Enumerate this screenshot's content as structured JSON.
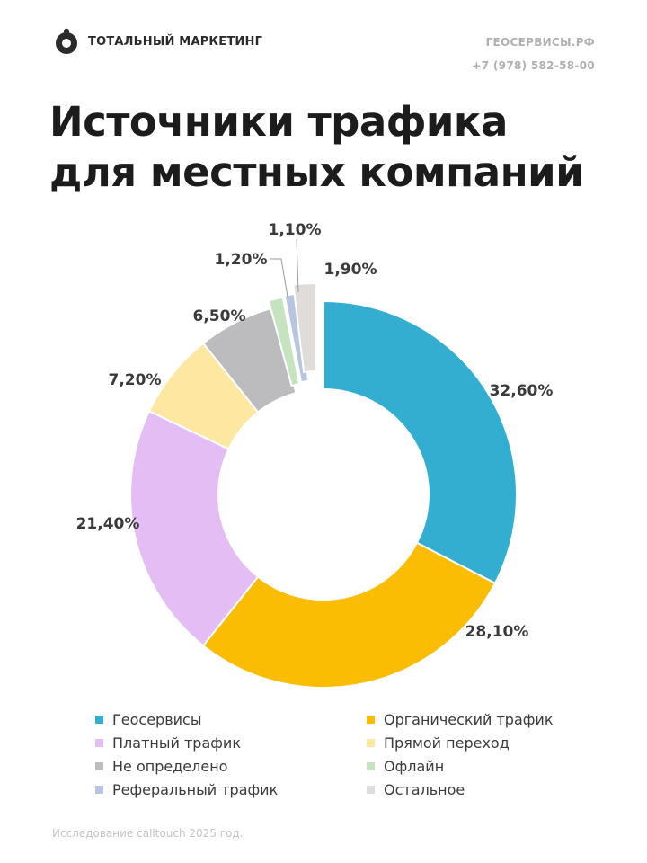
{
  "header": {
    "brand_name": "ТОТАЛЬНЫЙ МАРКЕТИНГ",
    "site": "ГЕОСЕРВИСЫ.РФ",
    "phone": "+7 (978) 582-58-00"
  },
  "title": {
    "line1": "Источники трафика",
    "line2": "для местных компаний"
  },
  "chart_data": {
    "type": "pie",
    "title": "Источники трафика для местных компаний",
    "donut": true,
    "legend_position": "bottom",
    "slices": [
      {
        "name": "Геосервисы",
        "value": 32.6,
        "label": "32,60%",
        "color": "#33aed0"
      },
      {
        "name": "Органический трафик",
        "value": 28.1,
        "label": "28,10%",
        "color": "#fbbd03"
      },
      {
        "name": "Платный трафик",
        "value": 21.4,
        "label": "21,40%",
        "color": "#e4bdf4"
      },
      {
        "name": "Прямой переход",
        "value": 7.2,
        "label": "7,20%",
        "color": "#fde7a1"
      },
      {
        "name": "Не определено",
        "value": 6.5,
        "label": "6,50%",
        "color": "#bcbbbe"
      },
      {
        "name": "Офлайн",
        "value": 1.2,
        "label": "1,20%",
        "color": "#c6e3c0"
      },
      {
        "name": "Реферальный трафик",
        "value": 1.1,
        "label": "1,10%",
        "color": "#b7c5e0"
      },
      {
        "name": "Остальное",
        "value": 1.9,
        "label": "1,90%",
        "color": "#e0dcda"
      }
    ]
  },
  "legend": [
    {
      "label": "Геосервисы",
      "color": "#33aed0"
    },
    {
      "label": "Органический трафик",
      "color": "#fbbd03"
    },
    {
      "label": "Платный трафик",
      "color": "#e4bdf4"
    },
    {
      "label": "Прямой переход",
      "color": "#fde7a1"
    },
    {
      "label": "Не определено",
      "color": "#bcbbbe"
    },
    {
      "label": "Офлайн",
      "color": "#c6e3c0"
    },
    {
      "label": "Реферальный трафик",
      "color": "#b7c5e0"
    },
    {
      "label": "Остальное",
      "color": "#e0dcda"
    }
  ],
  "footnote": "Исследование calltouch 2025 год."
}
